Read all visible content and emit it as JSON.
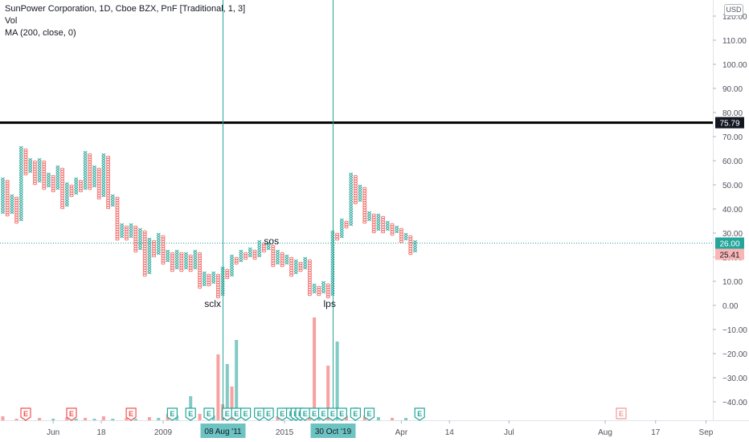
{
  "header": {
    "line1": "SunPower Corporation, 1D, Cboe BZX, PnF [Traditional, 1, 3]",
    "line2": "Vol",
    "line3": "MA (200, close, 0)",
    "currency": "USD"
  },
  "colors": {
    "x_column": "#26a69a",
    "o_column": "#ef5350",
    "volume_up": "#80cbc4",
    "volume_down": "#f7a1a1",
    "resistance_line": "#000000",
    "crosshair": "#26a69a",
    "earnings_badge": "#26a69a",
    "earnings_badge_future": "#ef9a9a"
  },
  "chart_data": {
    "type": "pnf",
    "box_size": 1,
    "reversal": 3,
    "y_axis": {
      "min": -43,
      "max": 127,
      "ticks": [
        -40,
        -30,
        -20,
        -10,
        0,
        10,
        20,
        30,
        40,
        50,
        60,
        70,
        80,
        90,
        100,
        110,
        120
      ],
      "tick_labels": [
        "−40.00",
        "−30.00",
        "−20.00",
        "−10.00",
        "0.00",
        "10.00",
        "20.00",
        "30.00",
        "40.00",
        "50.00",
        "60.00",
        "70.00",
        "80.00",
        "90.00",
        "100.00",
        "110.00",
        "120.00"
      ]
    },
    "x_axis_labels": [
      "Jun",
      "18",
      "2009",
      "08 Aug '11",
      "2015",
      "30 Oct '19",
      "Apr",
      "14",
      "Jul",
      "Aug",
      "17",
      "Sep"
    ],
    "columns": [
      {
        "t": "X",
        "lo": 38,
        "hi": 52
      },
      {
        "t": "O",
        "lo": 37,
        "hi": 51
      },
      {
        "t": "X",
        "lo": 38,
        "hi": 45
      },
      {
        "t": "O",
        "lo": 34,
        "hi": 44
      },
      {
        "t": "X",
        "lo": 35,
        "hi": 65
      },
      {
        "t": "O",
        "lo": 54,
        "hi": 64
      },
      {
        "t": "X",
        "lo": 55,
        "hi": 60
      },
      {
        "t": "O",
        "lo": 50,
        "hi": 59
      },
      {
        "t": "X",
        "lo": 51,
        "hi": 60
      },
      {
        "t": "O",
        "lo": 48,
        "hi": 59
      },
      {
        "t": "X",
        "lo": 49,
        "hi": 54
      },
      {
        "t": "O",
        "lo": 47,
        "hi": 53
      },
      {
        "t": "X",
        "lo": 48,
        "hi": 57
      },
      {
        "t": "O",
        "lo": 40,
        "hi": 56
      },
      {
        "t": "X",
        "lo": 41,
        "hi": 50
      },
      {
        "t": "O",
        "lo": 45,
        "hi": 49
      },
      {
        "t": "X",
        "lo": 46,
        "hi": 52
      },
      {
        "t": "O",
        "lo": 47,
        "hi": 51
      },
      {
        "t": "X",
        "lo": 48,
        "hi": 63
      },
      {
        "t": "O",
        "lo": 48,
        "hi": 62
      },
      {
        "t": "X",
        "lo": 49,
        "hi": 57
      },
      {
        "t": "O",
        "lo": 44,
        "hi": 56
      },
      {
        "t": "X",
        "lo": 45,
        "hi": 62
      },
      {
        "t": "O",
        "lo": 40,
        "hi": 61
      },
      {
        "t": "X",
        "lo": 41,
        "hi": 45
      },
      {
        "t": "O",
        "lo": 27,
        "hi": 44
      },
      {
        "t": "X",
        "lo": 28,
        "hi": 33
      },
      {
        "t": "O",
        "lo": 27,
        "hi": 32
      },
      {
        "t": "X",
        "lo": 28,
        "hi": 33
      },
      {
        "t": "O",
        "lo": 22,
        "hi": 32
      },
      {
        "t": "X",
        "lo": 23,
        "hi": 31
      },
      {
        "t": "O",
        "lo": 12,
        "hi": 30
      },
      {
        "t": "X",
        "lo": 13,
        "hi": 27
      },
      {
        "t": "O",
        "lo": 20,
        "hi": 26
      },
      {
        "t": "X",
        "lo": 21,
        "hi": 29
      },
      {
        "t": "O",
        "lo": 17,
        "hi": 28
      },
      {
        "t": "X",
        "lo": 18,
        "hi": 22
      },
      {
        "t": "O",
        "lo": 14,
        "hi": 21
      },
      {
        "t": "X",
        "lo": 15,
        "hi": 22
      },
      {
        "t": "O",
        "lo": 14,
        "hi": 21
      },
      {
        "t": "X",
        "lo": 15,
        "hi": 21
      },
      {
        "t": "O",
        "lo": 14,
        "hi": 20
      },
      {
        "t": "X",
        "lo": 15,
        "hi": 22
      },
      {
        "t": "O",
        "lo": 7,
        "hi": 21
      },
      {
        "t": "X",
        "lo": 8,
        "hi": 13
      },
      {
        "t": "O",
        "lo": 8,
        "hi": 12
      },
      {
        "t": "X",
        "lo": 9,
        "hi": 13
      },
      {
        "t": "O",
        "lo": 3,
        "hi": 12
      },
      {
        "t": "X",
        "lo": 4,
        "hi": 15
      },
      {
        "t": "O",
        "lo": 11,
        "hi": 14
      },
      {
        "t": "X",
        "lo": 12,
        "hi": 20
      },
      {
        "t": "O",
        "lo": 17,
        "hi": 19
      },
      {
        "t": "X",
        "lo": 18,
        "hi": 22
      },
      {
        "t": "O",
        "lo": 19,
        "hi": 21
      },
      {
        "t": "X",
        "lo": 20,
        "hi": 23
      },
      {
        "t": "O",
        "lo": 19,
        "hi": 22
      },
      {
        "t": "X",
        "lo": 20,
        "hi": 26
      },
      {
        "t": "O",
        "lo": 22,
        "hi": 25
      },
      {
        "t": "X",
        "lo": 23,
        "hi": 25
      },
      {
        "t": "O",
        "lo": 16,
        "hi": 24
      },
      {
        "t": "X",
        "lo": 17,
        "hi": 22
      },
      {
        "t": "O",
        "lo": 16,
        "hi": 21
      },
      {
        "t": "X",
        "lo": 17,
        "hi": 20
      },
      {
        "t": "O",
        "lo": 12,
        "hi": 19
      },
      {
        "t": "X",
        "lo": 13,
        "hi": 18
      },
      {
        "t": "O",
        "lo": 14,
        "hi": 17
      },
      {
        "t": "X",
        "lo": 15,
        "hi": 19
      },
      {
        "t": "O",
        "lo": 4,
        "hi": 18
      },
      {
        "t": "X",
        "lo": 5,
        "hi": 8
      },
      {
        "t": "O",
        "lo": 4,
        "hi": 7
      },
      {
        "t": "X",
        "lo": 5,
        "hi": 9
      },
      {
        "t": "O",
        "lo": 3,
        "hi": 8
      },
      {
        "t": "X",
        "lo": 4,
        "hi": 30
      },
      {
        "t": "O",
        "lo": 27,
        "hi": 29
      },
      {
        "t": "X",
        "lo": 28,
        "hi": 35
      },
      {
        "t": "O",
        "lo": 32,
        "hi": 34
      },
      {
        "t": "X",
        "lo": 33,
        "hi": 54
      },
      {
        "t": "O",
        "lo": 42,
        "hi": 53
      },
      {
        "t": "X",
        "lo": 43,
        "hi": 49
      },
      {
        "t": "O",
        "lo": 34,
        "hi": 48
      },
      {
        "t": "X",
        "lo": 35,
        "hi": 38
      },
      {
        "t": "O",
        "lo": 30,
        "hi": 37
      },
      {
        "t": "X",
        "lo": 31,
        "hi": 37
      },
      {
        "t": "O",
        "lo": 30,
        "hi": 36
      },
      {
        "t": "X",
        "lo": 31,
        "hi": 34
      },
      {
        "t": "O",
        "lo": 29,
        "hi": 33
      },
      {
        "t": "X",
        "lo": 30,
        "hi": 32
      },
      {
        "t": "O",
        "lo": 26,
        "hi": 31
      },
      {
        "t": "X",
        "lo": 27,
        "hi": 29
      },
      {
        "t": "O",
        "lo": 21,
        "hi": 28
      },
      {
        "t": "X",
        "lo": 22,
        "hi": 26
      }
    ],
    "volume": [
      {
        "c": 0,
        "h": 5,
        "up": false
      },
      {
        "c": 3,
        "h": 2,
        "up": false
      },
      {
        "c": 5,
        "h": 4,
        "up": true
      },
      {
        "c": 8,
        "h": 3,
        "up": false
      },
      {
        "c": 11,
        "h": 2,
        "up": true
      },
      {
        "c": 14,
        "h": 4,
        "up": false
      },
      {
        "c": 16,
        "h": 2,
        "up": true
      },
      {
        "c": 18,
        "h": 3,
        "up": false
      },
      {
        "c": 20,
        "h": 2,
        "up": true
      },
      {
        "c": 22,
        "h": 5,
        "up": false
      },
      {
        "c": 24,
        "h": 2,
        "up": true
      },
      {
        "c": 27,
        "h": 3,
        "up": false
      },
      {
        "c": 29,
        "h": 2,
        "up": true
      },
      {
        "c": 32,
        "h": 4,
        "up": false
      },
      {
        "c": 34,
        "h": 3,
        "up": true
      },
      {
        "c": 36,
        "h": 8,
        "up": false
      },
      {
        "c": 38,
        "h": 6,
        "up": true
      },
      {
        "c": 41,
        "h": 30,
        "up": true
      },
      {
        "c": 43,
        "h": 8,
        "up": false
      },
      {
        "c": 46,
        "h": 6,
        "up": true
      },
      {
        "c": 47,
        "h": 82,
        "up": false
      },
      {
        "c": 48,
        "h": 20,
        "up": false
      },
      {
        "c": 49,
        "h": 70,
        "up": true
      },
      {
        "c": 50,
        "h": 42,
        "up": false
      },
      {
        "c": 51,
        "h": 100,
        "up": true
      },
      {
        "c": 53,
        "h": 6,
        "up": false
      },
      {
        "c": 56,
        "h": 4,
        "up": true
      },
      {
        "c": 60,
        "h": 5,
        "up": false
      },
      {
        "c": 64,
        "h": 3,
        "up": true
      },
      {
        "c": 67,
        "h": 8,
        "up": false
      },
      {
        "c": 68,
        "h": 128,
        "up": false
      },
      {
        "c": 69,
        "h": 6,
        "up": true
      },
      {
        "c": 71,
        "h": 68,
        "up": false
      },
      {
        "c": 72,
        "h": 8,
        "up": false
      },
      {
        "c": 73,
        "h": 98,
        "up": true
      },
      {
        "c": 75,
        "h": 6,
        "up": false
      },
      {
        "c": 77,
        "h": 16,
        "up": true
      },
      {
        "c": 79,
        "h": 6,
        "up": false
      },
      {
        "c": 82,
        "h": 4,
        "up": true
      },
      {
        "c": 85,
        "h": 3,
        "up": false
      },
      {
        "c": 88,
        "h": 3,
        "up": true
      }
    ],
    "earnings_markers": [
      {
        "c": 5,
        "status": "past_red"
      },
      {
        "c": 15,
        "status": "past_red"
      },
      {
        "c": 28,
        "status": "past_red"
      },
      {
        "c": 37,
        "status": "past_green"
      },
      {
        "c": 41,
        "status": "past_green"
      },
      {
        "c": 45,
        "status": "past_green"
      },
      {
        "c": 49,
        "status": "past_green"
      },
      {
        "c": 51,
        "status": "past_green"
      },
      {
        "c": 53,
        "status": "past_green"
      },
      {
        "c": 56,
        "status": "past_green"
      },
      {
        "c": 58,
        "status": "past_green"
      },
      {
        "c": 61,
        "status": "past_green"
      },
      {
        "c": 63,
        "status": "past_green"
      },
      {
        "c": 64,
        "status": "past_green"
      },
      {
        "c": 65,
        "status": "past_green"
      },
      {
        "c": 66,
        "status": "past_green"
      },
      {
        "c": 68,
        "status": "past_green"
      },
      {
        "c": 70,
        "status": "past_green"
      },
      {
        "c": 72,
        "status": "past_green"
      },
      {
        "c": 74,
        "status": "past_green"
      },
      {
        "c": 77,
        "status": "past_green"
      },
      {
        "c": 80,
        "status": "past_green"
      },
      {
        "c": 91,
        "status": "past_green"
      },
      {
        "c": 135,
        "status": "future"
      }
    ],
    "earnings_label": "E",
    "horizontal_line": {
      "value": 75.79,
      "label": "75.79"
    },
    "last_price": {
      "value": 26.0,
      "label": "26.00"
    },
    "secondary_price": {
      "value": 25.41,
      "label": "25.41"
    },
    "crosshairs": [
      {
        "c": 48,
        "label": "08 Aug '11"
      },
      {
        "c": 72,
        "label": "30 Oct '19"
      }
    ],
    "annotations": [
      {
        "text": "sclx",
        "c": 44,
        "y": 1
      },
      {
        "text": "sos",
        "c": 57,
        "y": 27
      },
      {
        "text": "lps",
        "c": 70,
        "y": 1
      }
    ]
  }
}
